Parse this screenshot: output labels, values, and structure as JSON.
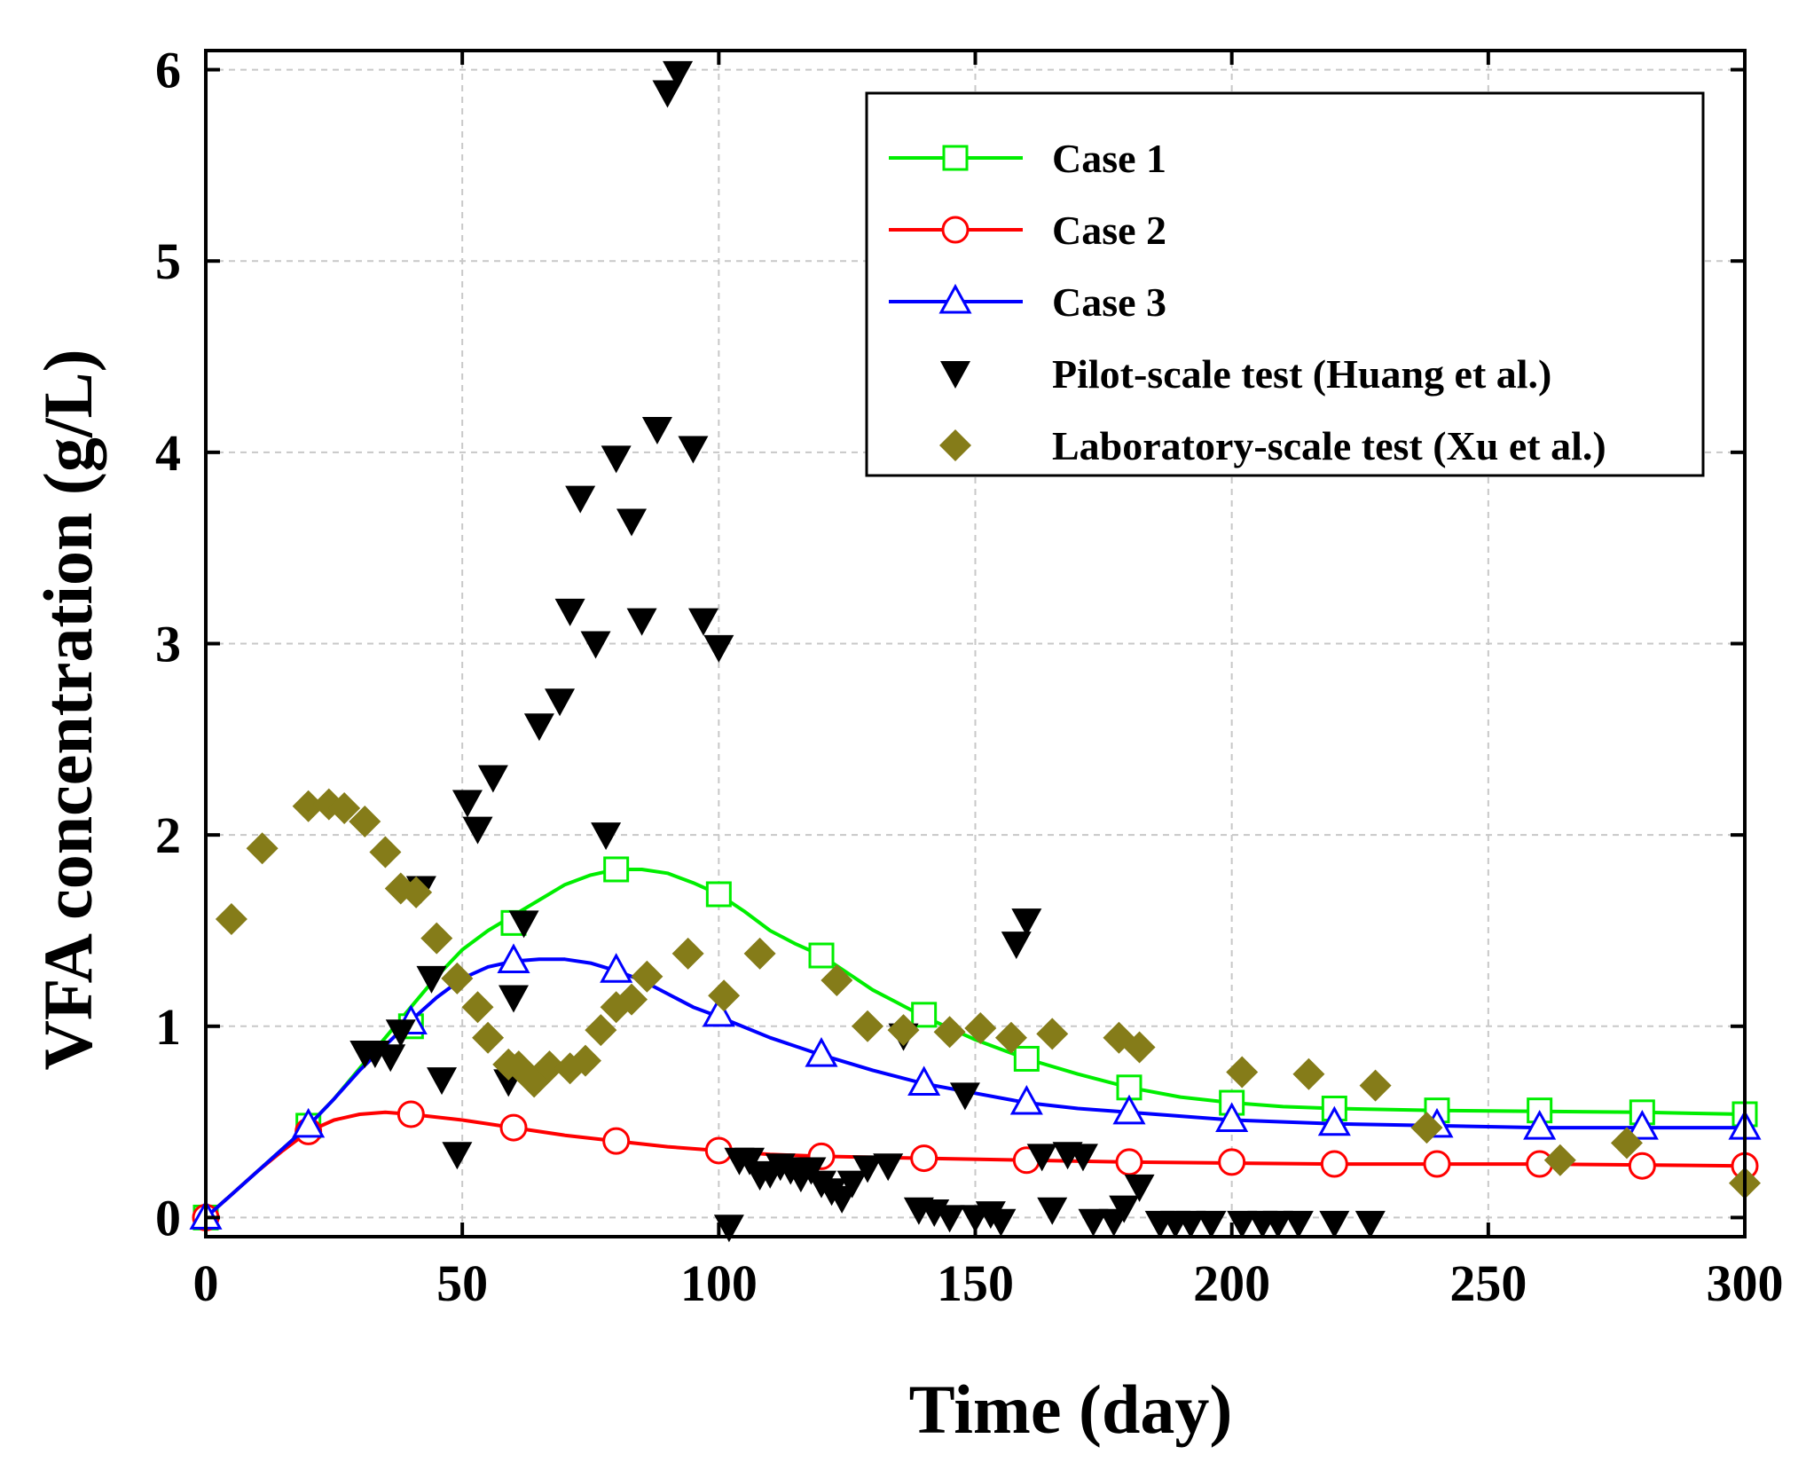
{
  "chart_data": {
    "type": "line",
    "xlabel": "Time (day)",
    "ylabel": "VFA concentration (g/L)",
    "xlim": [
      0,
      300
    ],
    "ylim": [
      -0.1,
      6.1
    ],
    "xticks": [
      0,
      50,
      100,
      150,
      200,
      250,
      300
    ],
    "yticks": [
      0,
      1,
      2,
      3,
      4,
      5,
      6
    ],
    "grid": true,
    "legend_position": "top-right",
    "series": [
      {
        "name": "Case 1",
        "kind": "line",
        "marker": "open-square",
        "color": "#00ee00",
        "curve": [
          [
            0,
            0
          ],
          [
            5,
            0.12
          ],
          [
            10,
            0.24
          ],
          [
            15,
            0.36
          ],
          [
            20,
            0.48
          ],
          [
            25,
            0.62
          ],
          [
            30,
            0.78
          ],
          [
            35,
            0.94
          ],
          [
            40,
            1.1
          ],
          [
            45,
            1.26
          ],
          [
            50,
            1.4
          ],
          [
            55,
            1.5
          ],
          [
            60,
            1.58
          ],
          [
            65,
            1.66
          ],
          [
            70,
            1.74
          ],
          [
            75,
            1.79
          ],
          [
            80,
            1.82
          ],
          [
            85,
            1.82
          ],
          [
            90,
            1.8
          ],
          [
            95,
            1.75
          ],
          [
            100,
            1.69
          ],
          [
            105,
            1.6
          ],
          [
            110,
            1.5
          ],
          [
            115,
            1.43
          ],
          [
            120,
            1.37
          ],
          [
            125,
            1.28
          ],
          [
            130,
            1.19
          ],
          [
            135,
            1.12
          ],
          [
            140,
            1.05
          ],
          [
            145,
            0.99
          ],
          [
            150,
            0.93
          ],
          [
            155,
            0.88
          ],
          [
            160,
            0.83
          ],
          [
            170,
            0.75
          ],
          [
            180,
            0.68
          ],
          [
            190,
            0.63
          ],
          [
            200,
            0.6
          ],
          [
            210,
            0.58
          ],
          [
            220,
            0.57
          ],
          [
            240,
            0.56
          ],
          [
            260,
            0.555
          ],
          [
            280,
            0.55
          ],
          [
            300,
            0.54
          ]
        ],
        "markers": [
          [
            0,
            0
          ],
          [
            20,
            0.48
          ],
          [
            40,
            1.0
          ],
          [
            60,
            1.54
          ],
          [
            80,
            1.82
          ],
          [
            100,
            1.69
          ],
          [
            120,
            1.37
          ],
          [
            140,
            1.06
          ],
          [
            160,
            0.83
          ],
          [
            180,
            0.68
          ],
          [
            200,
            0.6
          ],
          [
            220,
            0.57
          ],
          [
            240,
            0.56
          ],
          [
            260,
            0.56
          ],
          [
            280,
            0.55
          ],
          [
            300,
            0.54
          ]
        ]
      },
      {
        "name": "Case 2",
        "kind": "line",
        "marker": "open-circle",
        "color": "#ff0000",
        "curve": [
          [
            0,
            0
          ],
          [
            5,
            0.12
          ],
          [
            10,
            0.24
          ],
          [
            15,
            0.35
          ],
          [
            20,
            0.45
          ],
          [
            25,
            0.51
          ],
          [
            30,
            0.54
          ],
          [
            35,
            0.55
          ],
          [
            40,
            0.54
          ],
          [
            50,
            0.51
          ],
          [
            60,
            0.47
          ],
          [
            70,
            0.43
          ],
          [
            80,
            0.4
          ],
          [
            90,
            0.37
          ],
          [
            100,
            0.35
          ],
          [
            110,
            0.33
          ],
          [
            120,
            0.32
          ],
          [
            140,
            0.31
          ],
          [
            160,
            0.3
          ],
          [
            180,
            0.29
          ],
          [
            200,
            0.285
          ],
          [
            220,
            0.28
          ],
          [
            240,
            0.28
          ],
          [
            260,
            0.28
          ],
          [
            280,
            0.275
          ],
          [
            300,
            0.27
          ]
        ],
        "markers": [
          [
            0,
            0
          ],
          [
            20,
            0.45
          ],
          [
            40,
            0.54
          ],
          [
            60,
            0.47
          ],
          [
            80,
            0.4
          ],
          [
            100,
            0.35
          ],
          [
            120,
            0.32
          ],
          [
            140,
            0.31
          ],
          [
            160,
            0.3
          ],
          [
            180,
            0.29
          ],
          [
            200,
            0.29
          ],
          [
            220,
            0.28
          ],
          [
            240,
            0.28
          ],
          [
            260,
            0.28
          ],
          [
            280,
            0.27
          ],
          [
            300,
            0.27
          ]
        ]
      },
      {
        "name": "Case 3",
        "kind": "line",
        "marker": "open-triangle",
        "color": "#0000ff",
        "curve": [
          [
            0,
            0
          ],
          [
            5,
            0.12
          ],
          [
            10,
            0.24
          ],
          [
            15,
            0.36
          ],
          [
            20,
            0.48
          ],
          [
            25,
            0.62
          ],
          [
            30,
            0.77
          ],
          [
            35,
            0.9
          ],
          [
            40,
            1.03
          ],
          [
            45,
            1.15
          ],
          [
            50,
            1.25
          ],
          [
            55,
            1.31
          ],
          [
            60,
            1.34
          ],
          [
            65,
            1.35
          ],
          [
            70,
            1.35
          ],
          [
            75,
            1.33
          ],
          [
            80,
            1.29
          ],
          [
            85,
            1.24
          ],
          [
            90,
            1.17
          ],
          [
            95,
            1.1
          ],
          [
            100,
            1.05
          ],
          [
            110,
            0.94
          ],
          [
            120,
            0.85
          ],
          [
            130,
            0.77
          ],
          [
            140,
            0.7
          ],
          [
            150,
            0.65
          ],
          [
            160,
            0.6
          ],
          [
            170,
            0.57
          ],
          [
            180,
            0.55
          ],
          [
            200,
            0.51
          ],
          [
            220,
            0.49
          ],
          [
            240,
            0.48
          ],
          [
            260,
            0.47
          ],
          [
            280,
            0.47
          ],
          [
            300,
            0.47
          ]
        ],
        "markers": [
          [
            0,
            0
          ],
          [
            20,
            0.48
          ],
          [
            40,
            1.02
          ],
          [
            60,
            1.34
          ],
          [
            80,
            1.29
          ],
          [
            100,
            1.06
          ],
          [
            120,
            0.85
          ],
          [
            140,
            0.7
          ],
          [
            160,
            0.6
          ],
          [
            180,
            0.55
          ],
          [
            200,
            0.51
          ],
          [
            220,
            0.49
          ],
          [
            240,
            0.48
          ],
          [
            260,
            0.47
          ],
          [
            280,
            0.47
          ],
          [
            300,
            0.47
          ]
        ]
      },
      {
        "name": "Pilot-scale test (Huang et al.)",
        "kind": "scatter",
        "marker": "filled-triangle-down",
        "color": "#000000",
        "points": [
          [
            31,
            0.86
          ],
          [
            33,
            0.86
          ],
          [
            36,
            0.84
          ],
          [
            38,
            0.97
          ],
          [
            42,
            1.72
          ],
          [
            44,
            1.25
          ],
          [
            46,
            0.72
          ],
          [
            49,
            0.33
          ],
          [
            51,
            2.17
          ],
          [
            53,
            2.03
          ],
          [
            56,
            2.3
          ],
          [
            59,
            0.71
          ],
          [
            60,
            1.15
          ],
          [
            62,
            1.54
          ],
          [
            65,
            2.57
          ],
          [
            69,
            2.7
          ],
          [
            71,
            3.17
          ],
          [
            73,
            3.76
          ],
          [
            76,
            3.0
          ],
          [
            78,
            2.0
          ],
          [
            80,
            3.97
          ],
          [
            83,
            3.64
          ],
          [
            85,
            3.12
          ],
          [
            88,
            4.12
          ],
          [
            90,
            5.88
          ],
          [
            92,
            5.98
          ],
          [
            95,
            4.02
          ],
          [
            97,
            3.12
          ],
          [
            100,
            2.98
          ],
          [
            102,
            -0.05
          ],
          [
            104,
            0.3
          ],
          [
            106,
            0.3
          ],
          [
            108,
            0.22
          ],
          [
            110,
            0.23
          ],
          [
            112,
            0.27
          ],
          [
            114,
            0.25
          ],
          [
            116,
            0.21
          ],
          [
            118,
            0.25
          ],
          [
            120,
            0.18
          ],
          [
            122,
            0.14
          ],
          [
            124,
            0.1
          ],
          [
            126,
            0.18
          ],
          [
            129,
            0.26
          ],
          [
            133,
            0.27
          ],
          [
            136,
            0.95
          ],
          [
            139,
            0.04
          ],
          [
            142,
            0.03
          ],
          [
            145,
            0.0
          ],
          [
            148,
            0.64
          ],
          [
            150,
            0.0
          ],
          [
            153,
            0.02
          ],
          [
            155,
            -0.02
          ],
          [
            158,
            1.43
          ],
          [
            160,
            1.55
          ],
          [
            163,
            0.32
          ],
          [
            165,
            0.04
          ],
          [
            168,
            0.33
          ],
          [
            171,
            0.32
          ],
          [
            173,
            -0.02
          ],
          [
            177,
            -0.02
          ],
          [
            179,
            0.05
          ],
          [
            182,
            0.16
          ],
          [
            186,
            -0.03
          ],
          [
            189,
            -0.03
          ],
          [
            192,
            -0.03
          ],
          [
            196,
            -0.03
          ],
          [
            202,
            -0.03
          ],
          [
            206,
            -0.03
          ],
          [
            209,
            -0.03
          ],
          [
            213,
            -0.03
          ],
          [
            220,
            -0.03
          ],
          [
            227,
            -0.03
          ]
        ]
      },
      {
        "name": "Laboratory-scale test (Xu et al.)",
        "kind": "scatter",
        "marker": "filled-diamond",
        "color": "#857c19",
        "points": [
          [
            5,
            1.56
          ],
          [
            11,
            1.93
          ],
          [
            20,
            2.15
          ],
          [
            24,
            2.16
          ],
          [
            27,
            2.14
          ],
          [
            31,
            2.07
          ],
          [
            35,
            1.91
          ],
          [
            38,
            1.72
          ],
          [
            41,
            1.7
          ],
          [
            45,
            1.46
          ],
          [
            49,
            1.25
          ],
          [
            53,
            1.1
          ],
          [
            55,
            0.94
          ],
          [
            59,
            0.8
          ],
          [
            61,
            0.79
          ],
          [
            64,
            0.71
          ],
          [
            67,
            0.79
          ],
          [
            71,
            0.78
          ],
          [
            74,
            0.82
          ],
          [
            77,
            0.98
          ],
          [
            80,
            1.1
          ],
          [
            83,
            1.14
          ],
          [
            86,
            1.26
          ],
          [
            94,
            1.38
          ],
          [
            101,
            1.16
          ],
          [
            108,
            1.38
          ],
          [
            123,
            1.24
          ],
          [
            129,
            1.0
          ],
          [
            136,
            0.98
          ],
          [
            145,
            0.97
          ],
          [
            151,
            0.99
          ],
          [
            157,
            0.94
          ],
          [
            165,
            0.96
          ],
          [
            178,
            0.94
          ],
          [
            182,
            0.89
          ],
          [
            202,
            0.76
          ],
          [
            215,
            0.75
          ],
          [
            228,
            0.69
          ],
          [
            238,
            0.47
          ],
          [
            264,
            0.3
          ],
          [
            277,
            0.39
          ],
          [
            300,
            0.18
          ]
        ]
      }
    ]
  }
}
